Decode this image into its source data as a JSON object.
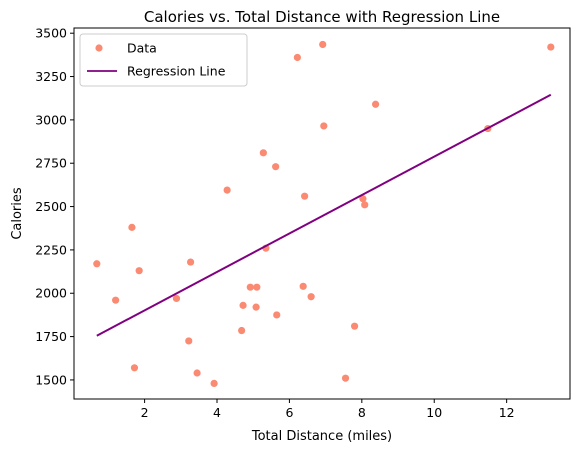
{
  "chart_data": {
    "type": "scatter",
    "title": "Calories vs. Total Distance with Regression Line",
    "xlabel": "Total Distance (miles)",
    "ylabel": "Calories",
    "xlim": [
      0.05,
      13.75
    ],
    "ylim": [
      1390,
      3530
    ],
    "xticks": [
      2,
      4,
      6,
      8,
      10,
      12
    ],
    "yticks": [
      1500,
      1750,
      2000,
      2250,
      2500,
      2750,
      3000,
      3250,
      3500
    ],
    "grid": false,
    "legend_position": "top-left",
    "series": [
      {
        "name": "Data",
        "kind": "scatter",
        "color": "#fa8a72",
        "points": [
          [
            0.68,
            2170
          ],
          [
            1.2,
            1960
          ],
          [
            1.65,
            2380
          ],
          [
            1.72,
            1570
          ],
          [
            1.85,
            2130
          ],
          [
            2.88,
            1970
          ],
          [
            3.22,
            1725
          ],
          [
            3.27,
            2180
          ],
          [
            3.45,
            1540
          ],
          [
            3.92,
            1480
          ],
          [
            4.28,
            2595
          ],
          [
            4.68,
            1785
          ],
          [
            4.72,
            1930
          ],
          [
            4.92,
            2035
          ],
          [
            5.08,
            1920
          ],
          [
            5.1,
            2035
          ],
          [
            5.28,
            2810
          ],
          [
            5.35,
            2260
          ],
          [
            5.62,
            2730
          ],
          [
            5.65,
            1875
          ],
          [
            6.22,
            3360
          ],
          [
            6.38,
            2040
          ],
          [
            6.42,
            2560
          ],
          [
            6.6,
            1980
          ],
          [
            6.92,
            3435
          ],
          [
            6.95,
            2965
          ],
          [
            7.55,
            1510
          ],
          [
            7.8,
            1810
          ],
          [
            8.03,
            2545
          ],
          [
            8.08,
            2510
          ],
          [
            8.38,
            3090
          ],
          [
            11.48,
            2950
          ],
          [
            13.22,
            3420
          ]
        ]
      },
      {
        "name": "Regression Line",
        "kind": "line",
        "color": "#800080",
        "points": [
          [
            0.68,
            1755
          ],
          [
            13.22,
            3145
          ]
        ]
      }
    ]
  }
}
